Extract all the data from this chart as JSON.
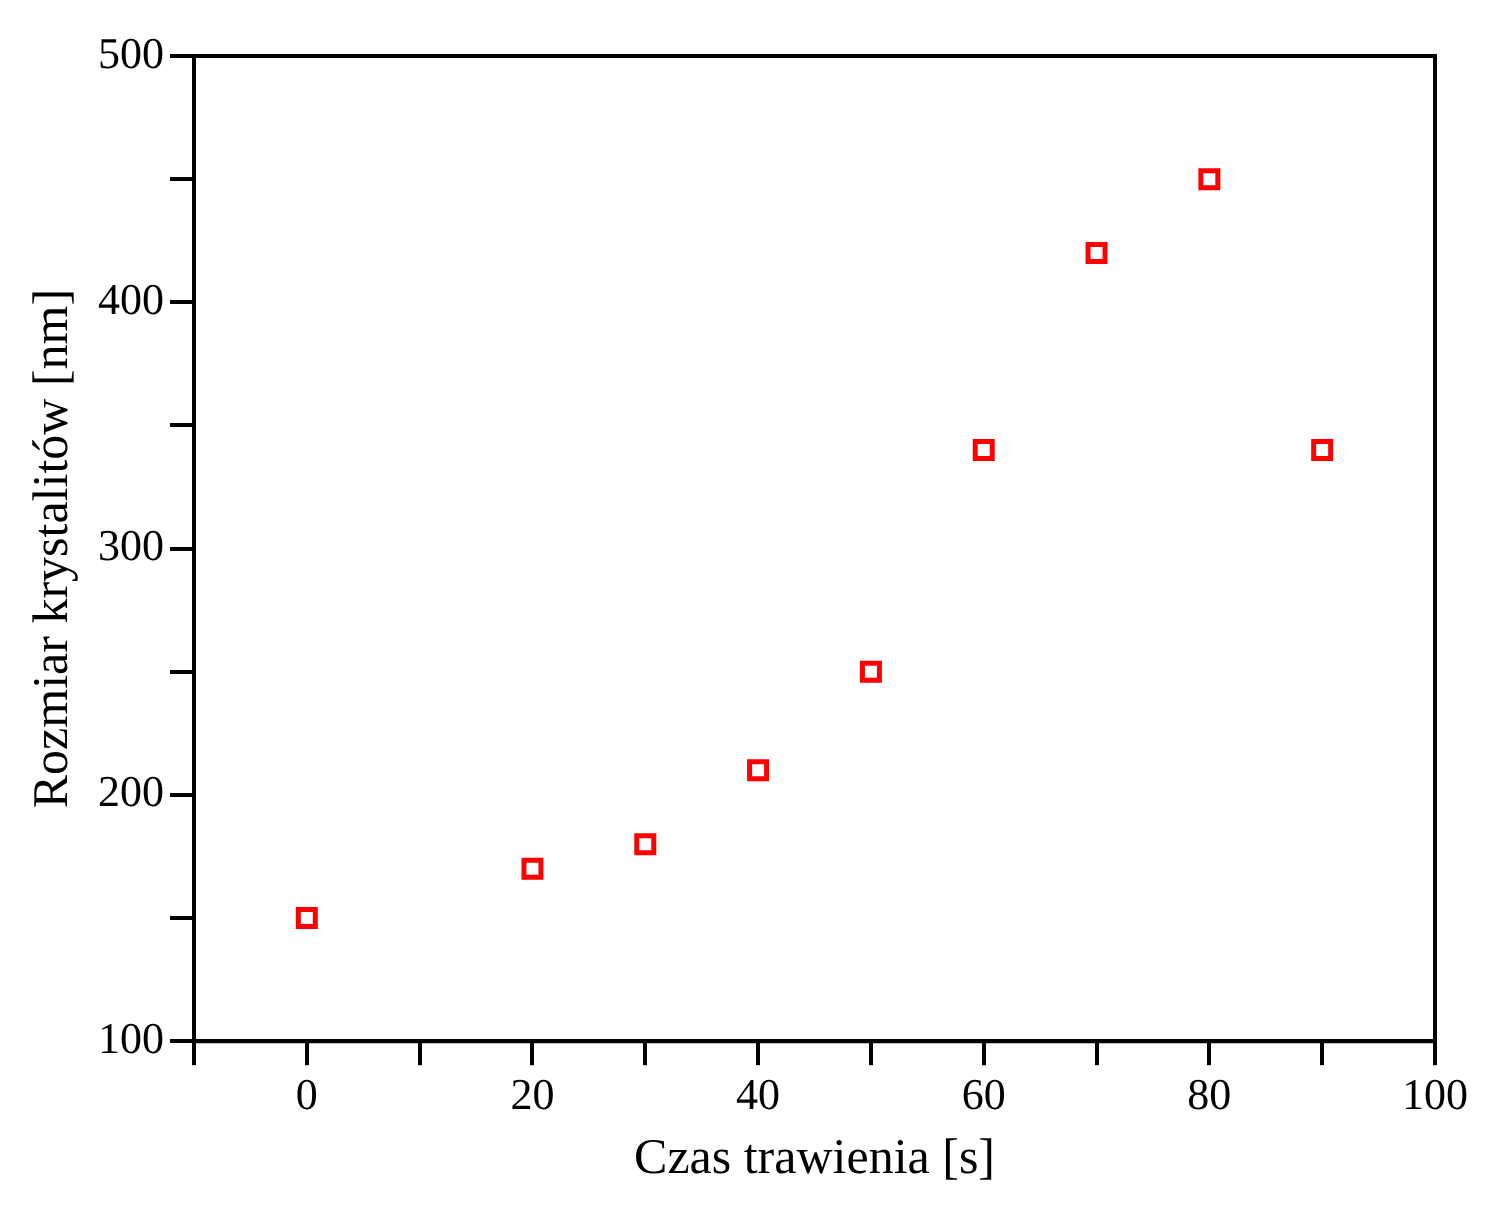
{
  "chart_data": {
    "type": "scatter",
    "xlabel": "Czas trawienia [s]",
    "ylabel": "Rozmiar krystalitów [nm]",
    "x": [
      0,
      20,
      30,
      40,
      50,
      60,
      70,
      80,
      90
    ],
    "series": [
      {
        "color": "#ff0000",
        "values": [
          150,
          170,
          180,
          210,
          250,
          340,
          420,
          450,
          340
        ]
      }
    ],
    "marker": "square",
    "grid": false,
    "legend": false,
    "xlim": [
      -10,
      100
    ],
    "xticks": [
      {
        "value": -10,
        "label": null
      },
      0,
      {
        "value": 10,
        "label": null
      },
      20,
      {
        "value": 30,
        "label": null
      },
      40,
      {
        "value": 50,
        "label": null
      },
      60,
      {
        "value": 70,
        "label": null
      },
      80,
      {
        "value": 90,
        "label": null
      },
      100
    ],
    "ylim": [
      100,
      500
    ],
    "yticks": [
      100,
      {
        "value": 150,
        "label": null
      },
      200,
      {
        "value": 250,
        "label": null
      },
      300,
      {
        "value": 350,
        "label": null
      },
      400,
      {
        "value": 450,
        "label": null
      },
      500
    ]
  }
}
